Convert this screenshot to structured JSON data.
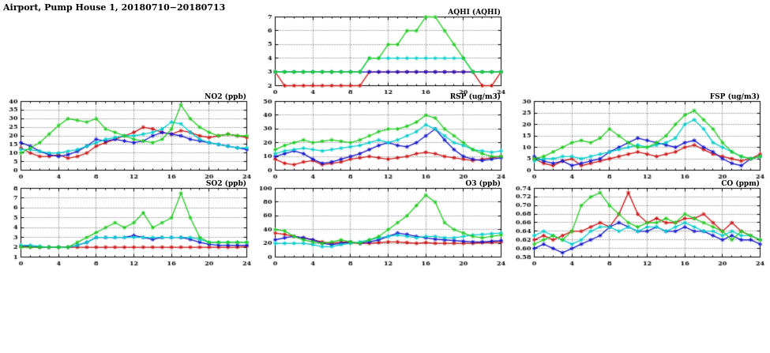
{
  "page_title": "Airport, Pump House 1, 20180710−20180713",
  "colors": {
    "blue": "#1414cc",
    "red": "#cc1414",
    "green": "#22cc22",
    "cyan": "#00cccc"
  },
  "chart_data": [
    {
      "id": "aqhi",
      "type": "line",
      "title": "AQHI (AQHI)",
      "xlim": [
        0,
        24
      ],
      "xticks": [
        0,
        4,
        8,
        12,
        16,
        20,
        24
      ],
      "ylim": [
        2,
        7
      ],
      "ytick": 1,
      "ydecimals": 0,
      "grid": true,
      "legend": "none",
      "series": [
        {
          "name": "red",
          "color": "#cc1414",
          "values": [
            3,
            2,
            2,
            2,
            2,
            2,
            2,
            2,
            2,
            2,
            3,
            3,
            3,
            3,
            3,
            3,
            3,
            3,
            3,
            3,
            3,
            3,
            2,
            2,
            3
          ]
        },
        {
          "name": "blue",
          "color": "#1414cc",
          "values": [
            3,
            3,
            3,
            3,
            3,
            3,
            3,
            3,
            3,
            3,
            3,
            3,
            3,
            3,
            3,
            3,
            3,
            3,
            3,
            3,
            3,
            3,
            3,
            3,
            3
          ]
        },
        {
          "name": "cyan",
          "color": "#00cccc",
          "values": [
            3,
            3,
            3,
            3,
            3,
            3,
            3,
            3,
            3,
            3,
            4,
            4,
            4,
            4,
            4,
            4,
            4,
            4,
            4,
            4,
            4,
            3,
            3,
            3,
            3
          ]
        },
        {
          "name": "green",
          "color": "#22cc22",
          "values": [
            3,
            3,
            3,
            3,
            3,
            3,
            3,
            3,
            3,
            3,
            4,
            4,
            5,
            5,
            6,
            6,
            7,
            7,
            6,
            5,
            4,
            3,
            3,
            3,
            3
          ]
        }
      ]
    },
    {
      "id": "no2",
      "type": "line",
      "title": "NO2 (ppb)",
      "xlim": [
        0,
        24
      ],
      "xticks": [
        0,
        4,
        8,
        12,
        16,
        20,
        24
      ],
      "ylim": [
        0,
        40
      ],
      "ytick": 5,
      "ydecimals": 0,
      "grid": true,
      "legend": "none",
      "series": [
        {
          "name": "red",
          "color": "#cc1414",
          "values": [
            13,
            10,
            8,
            8,
            9,
            7,
            8,
            10,
            14,
            16,
            18,
            20,
            22,
            25,
            24,
            22,
            21,
            23,
            22,
            20,
            19,
            20,
            21,
            20,
            19
          ]
        },
        {
          "name": "blue",
          "color": "#1414cc",
          "values": [
            16,
            14,
            11,
            9,
            8,
            9,
            11,
            14,
            18,
            17,
            18,
            17,
            16,
            17,
            20,
            22,
            21,
            20,
            18,
            17,
            16,
            15,
            14,
            13,
            12
          ]
        },
        {
          "name": "cyan",
          "color": "#00cccc",
          "values": [
            12,
            12,
            11,
            10,
            10,
            11,
            12,
            14,
            16,
            18,
            19,
            20,
            20,
            21,
            22,
            24,
            28,
            27,
            22,
            18,
            16,
            15,
            14,
            13,
            13
          ]
        },
        {
          "name": "green",
          "color": "#22cc22",
          "values": [
            10,
            13,
            16,
            21,
            26,
            30,
            29,
            28,
            30,
            24,
            22,
            20,
            18,
            17,
            16,
            18,
            24,
            38,
            30,
            25,
            22,
            20,
            21,
            20,
            20
          ]
        }
      ]
    },
    {
      "id": "rsp",
      "type": "line",
      "title": "RSP (ug/m3)",
      "xlim": [
        0,
        24
      ],
      "xticks": [
        0,
        4,
        8,
        12,
        16,
        20,
        24
      ],
      "ylim": [
        0,
        50
      ],
      "ytick": 10,
      "ydecimals": 0,
      "grid": true,
      "legend": "none",
      "series": [
        {
          "name": "red",
          "color": "#cc1414",
          "values": [
            8,
            5,
            4,
            6,
            7,
            4,
            5,
            6,
            8,
            9,
            10,
            9,
            8,
            9,
            10,
            12,
            13,
            12,
            10,
            9,
            8,
            7,
            8,
            9,
            10
          ]
        },
        {
          "name": "blue",
          "color": "#1414cc",
          "values": [
            10,
            12,
            14,
            12,
            8,
            5,
            6,
            8,
            10,
            12,
            15,
            18,
            20,
            18,
            17,
            20,
            25,
            30,
            22,
            15,
            10,
            8,
            7,
            8,
            9
          ]
        },
        {
          "name": "cyan",
          "color": "#00cccc",
          "values": [
            12,
            14,
            15,
            16,
            15,
            14,
            15,
            16,
            17,
            18,
            20,
            22,
            20,
            22,
            25,
            28,
            33,
            30,
            25,
            20,
            18,
            15,
            14,
            13,
            14
          ]
        },
        {
          "name": "green",
          "color": "#22cc22",
          "values": [
            15,
            18,
            20,
            22,
            20,
            21,
            22,
            21,
            20,
            22,
            25,
            28,
            30,
            30,
            32,
            35,
            40,
            38,
            30,
            25,
            20,
            15,
            12,
            10,
            10
          ]
        }
      ]
    },
    {
      "id": "fsp",
      "type": "line",
      "title": "FSP (ug/m3)",
      "xlim": [
        0,
        24
      ],
      "xticks": [
        0,
        4,
        8,
        12,
        16,
        20,
        24
      ],
      "ylim": [
        0,
        30
      ],
      "ytick": 5,
      "ydecimals": 0,
      "grid": true,
      "legend": "none",
      "series": [
        {
          "name": "red",
          "color": "#cc1414",
          "values": [
            5,
            3,
            2,
            4,
            5,
            2,
            3,
            4,
            5,
            6,
            7,
            8,
            7,
            6,
            7,
            8,
            10,
            11,
            9,
            7,
            6,
            5,
            4,
            5,
            7
          ]
        },
        {
          "name": "blue",
          "color": "#1414cc",
          "values": [
            6,
            4,
            3,
            4,
            2,
            3,
            4,
            5,
            8,
            10,
            12,
            14,
            13,
            12,
            11,
            10,
            12,
            13,
            10,
            8,
            5,
            3,
            2,
            5,
            6
          ]
        },
        {
          "name": "cyan",
          "color": "#00cccc",
          "values": [
            4,
            5,
            5,
            6,
            6,
            5,
            6,
            7,
            8,
            9,
            10,
            11,
            10,
            11,
            12,
            14,
            20,
            22,
            18,
            12,
            10,
            8,
            6,
            5,
            6
          ]
        },
        {
          "name": "green",
          "color": "#22cc22",
          "values": [
            5,
            6,
            8,
            10,
            12,
            13,
            12,
            14,
            18,
            15,
            12,
            10,
            10,
            12,
            15,
            20,
            24,
            26,
            22,
            18,
            12,
            8,
            6,
            5,
            6
          ]
        }
      ]
    },
    {
      "id": "so2",
      "type": "line",
      "title": "SO2 (ppb)",
      "xlim": [
        0,
        24
      ],
      "xticks": [
        0,
        4,
        8,
        12,
        16,
        20,
        24
      ],
      "ylim": [
        1,
        8
      ],
      "ytick": 1,
      "ydecimals": 0,
      "grid": true,
      "legend": "none",
      "series": [
        {
          "name": "red",
          "color": "#cc1414",
          "values": [
            2.1,
            2,
            2,
            2,
            2,
            2,
            2,
            2,
            2,
            2,
            2,
            2,
            2,
            2,
            2,
            2,
            2,
            2,
            2,
            2,
            2,
            2,
            2,
            2,
            2.1
          ]
        },
        {
          "name": "blue",
          "color": "#1414cc",
          "values": [
            2.2,
            2.1,
            2,
            2,
            2,
            2,
            2.2,
            2.5,
            3,
            3,
            3,
            3,
            3.2,
            3,
            2.8,
            3,
            3,
            3,
            2.8,
            2.5,
            2.3,
            2.2,
            2.2,
            2.2,
            2.2
          ]
        },
        {
          "name": "cyan",
          "color": "#00cccc",
          "values": [
            2.2,
            2.2,
            2.1,
            2,
            2,
            2,
            2.2,
            2.5,
            3,
            3,
            3,
            3,
            3,
            3,
            3,
            3,
            3,
            3,
            3,
            2.8,
            2.5,
            2.5,
            2.5,
            2.5,
            2.5
          ]
        },
        {
          "name": "green",
          "color": "#22cc22",
          "values": [
            2,
            2,
            2,
            2,
            2,
            2,
            2.5,
            3,
            3.5,
            4,
            4.5,
            4,
            4.5,
            5.5,
            4,
            4.5,
            5,
            7.5,
            5,
            3,
            2.5,
            2.5,
            2.5,
            2.5,
            2.5
          ]
        }
      ]
    },
    {
      "id": "o3",
      "type": "line",
      "title": "O3 (ppb)",
      "xlim": [
        0,
        24
      ],
      "xticks": [
        0,
        4,
        8,
        12,
        16,
        20,
        24
      ],
      "ylim": [
        0,
        100
      ],
      "ytick": 20,
      "ydecimals": 0,
      "grid": true,
      "legend": "none",
      "series": [
        {
          "name": "red",
          "color": "#cc1414",
          "values": [
            35,
            33,
            30,
            28,
            25,
            22,
            20,
            22,
            21,
            20,
            20,
            21,
            22,
            22,
            21,
            20,
            21,
            20,
            20,
            20,
            20,
            20,
            21,
            21,
            22
          ]
        },
        {
          "name": "blue",
          "color": "#1414cc",
          "values": [
            25,
            28,
            30,
            28,
            25,
            20,
            18,
            20,
            22,
            20,
            22,
            25,
            30,
            35,
            33,
            30,
            28,
            26,
            25,
            24,
            23,
            22,
            22,
            23,
            24
          ]
        },
        {
          "name": "cyan",
          "color": "#00cccc",
          "values": [
            20,
            20,
            20,
            20,
            18,
            15,
            15,
            18,
            20,
            22,
            25,
            28,
            30,
            32,
            30,
            28,
            30,
            30,
            28,
            28,
            30,
            32,
            33,
            34,
            35
          ]
        },
        {
          "name": "green",
          "color": "#22cc22",
          "values": [
            40,
            38,
            30,
            25,
            22,
            20,
            22,
            25,
            22,
            20,
            25,
            30,
            40,
            50,
            60,
            75,
            90,
            80,
            50,
            40,
            35,
            30,
            28,
            30,
            32
          ]
        }
      ]
    },
    {
      "id": "co",
      "type": "line",
      "title": "CO (ppm)",
      "xlim": [
        0,
        24
      ],
      "xticks": [
        0,
        4,
        8,
        12,
        16,
        20,
        24
      ],
      "ylim": [
        0.58,
        0.74
      ],
      "ytick": 0.02,
      "ydecimals": 2,
      "grid": true,
      "legend": "none",
      "series": [
        {
          "name": "red",
          "color": "#cc1414",
          "values": [
            0.62,
            0.63,
            0.62,
            0.63,
            0.64,
            0.64,
            0.65,
            0.66,
            0.65,
            0.68,
            0.73,
            0.68,
            0.66,
            0.67,
            0.66,
            0.66,
            0.67,
            0.67,
            0.68,
            0.66,
            0.64,
            0.66,
            0.64,
            0.63,
            0.62
          ]
        },
        {
          "name": "blue",
          "color": "#1414cc",
          "values": [
            0.6,
            0.61,
            0.6,
            0.59,
            0.6,
            0.61,
            0.62,
            0.63,
            0.65,
            0.66,
            0.65,
            0.64,
            0.64,
            0.65,
            0.64,
            0.64,
            0.65,
            0.64,
            0.64,
            0.63,
            0.62,
            0.63,
            0.62,
            0.62,
            0.61
          ]
        },
        {
          "name": "cyan",
          "color": "#00cccc",
          "values": [
            0.63,
            0.64,
            0.63,
            0.62,
            0.61,
            0.62,
            0.64,
            0.65,
            0.65,
            0.64,
            0.65,
            0.64,
            0.65,
            0.65,
            0.64,
            0.65,
            0.66,
            0.65,
            0.64,
            0.64,
            0.63,
            0.64,
            0.63,
            0.63,
            0.62
          ]
        },
        {
          "name": "green",
          "color": "#22cc22",
          "values": [
            0.61,
            0.62,
            0.63,
            0.62,
            0.64,
            0.7,
            0.72,
            0.73,
            0.7,
            0.68,
            0.66,
            0.65,
            0.66,
            0.66,
            0.67,
            0.66,
            0.68,
            0.67,
            0.66,
            0.65,
            0.64,
            0.62,
            0.64,
            0.63,
            0.62
          ]
        }
      ]
    }
  ]
}
